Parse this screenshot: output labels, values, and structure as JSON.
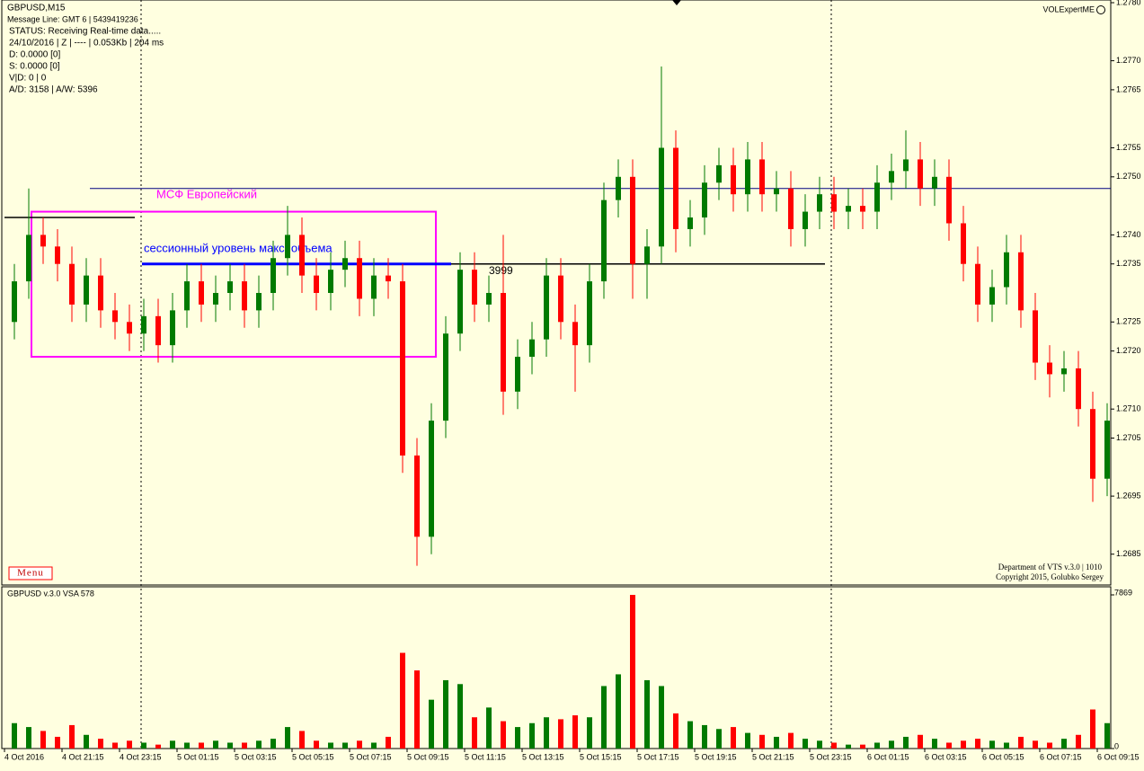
{
  "header": {
    "symbol": "GBPUSD,M15",
    "message": "Message Line: GMT 6 | 5439419236",
    "status": "STATUS:  Receiving Real-time data.....",
    "info": "24/10/2016 | Z | ---- | 0.053Kb | 204 ms",
    "d": "D: 0.0000  [0]",
    "s": "S: 0.0000  [0]",
    "vd": "V|D: 0 | 0",
    "ad": "A/D: 3158 | A/W: 5396",
    "expert": "VOLExpertME",
    "menu": "Menu"
  },
  "footer": {
    "line1": "Department of VTS  v.3.0 | 1010",
    "line2": "Copyright 2015, Golubko Sergey"
  },
  "chart_data": [
    {
      "type": "candlestick",
      "up_color": "#007a00",
      "down_color": "#ff0000",
      "categories": [
        "4 Oct 2016",
        null,
        null,
        null,
        "4 Oct 21:15",
        null,
        null,
        null,
        "4 Oct 23:15",
        null,
        null,
        null,
        "5 Oct 01:15",
        null,
        null,
        null,
        "5 Oct 03:15",
        null,
        null,
        null,
        "5 Oct 05:15",
        null,
        null,
        null,
        "5 Oct 07:15",
        null,
        null,
        null,
        "5 Oct 09:15",
        null,
        null,
        null,
        "5 Oct 11:15",
        null,
        null,
        null,
        "5 Oct 13:15",
        null,
        null,
        null,
        "5 Oct 15:15",
        null,
        null,
        null,
        "5 Oct 17:15",
        null,
        null,
        null,
        "5 Oct 19:15",
        null,
        null,
        null,
        "5 Oct 21:15",
        null,
        null,
        null,
        "5 Oct 23:15",
        null,
        null,
        null,
        "6 Oct 01:15",
        null,
        null,
        null,
        "6 Oct 03:15",
        null,
        null,
        null,
        "6 Oct 05:15",
        null,
        null,
        null,
        "6 Oct 07:15",
        null,
        null,
        null,
        "6 Oct 09:15"
      ],
      "open": [
        1.2725,
        1.2732,
        1.274,
        1.2738,
        1.2735,
        1.2728,
        1.2733,
        1.2727,
        1.2725,
        1.2723,
        1.2726,
        1.2721,
        1.2727,
        1.2732,
        1.2728,
        1.273,
        1.2732,
        1.2727,
        1.273,
        1.2736,
        1.274,
        1.2733,
        1.273,
        1.2734,
        1.2736,
        1.2729,
        1.2733,
        1.2732,
        1.2702,
        1.2688,
        1.2708,
        1.2723,
        1.2734,
        1.2728,
        1.273,
        1.2713,
        1.2719,
        1.2722,
        1.2733,
        1.2725,
        1.2721,
        1.2732,
        1.2746,
        1.275,
        1.2735,
        1.2738,
        1.2755,
        1.2741,
        1.2743,
        1.2749,
        1.2752,
        1.2747,
        1.2753,
        1.2747,
        1.2748,
        1.2741,
        1.2744,
        1.2747,
        1.2744,
        1.2745,
        1.2744,
        1.2749,
        1.2751,
        1.2753,
        1.2748,
        1.275,
        1.2742,
        1.2735,
        1.2728,
        1.2731,
        1.2737,
        1.2727,
        1.2718,
        1.2716,
        1.2717,
        1.271,
        1.2698
      ],
      "high": [
        1.2735,
        1.2748,
        1.2743,
        1.2741,
        1.2738,
        1.2736,
        1.2736,
        1.273,
        1.2728,
        1.2729,
        1.2729,
        1.273,
        1.2735,
        1.2735,
        1.2733,
        1.2735,
        1.2735,
        1.2733,
        1.2739,
        1.2745,
        1.2743,
        1.2736,
        1.2737,
        1.2739,
        1.2739,
        1.2736,
        1.2736,
        1.2735,
        1.2705,
        1.2711,
        1.2726,
        1.2737,
        1.2737,
        1.2733,
        1.274,
        1.2722,
        1.2725,
        1.2736,
        1.2736,
        1.2728,
        1.2735,
        1.2749,
        1.2753,
        1.2753,
        1.2741,
        1.2769,
        1.2758,
        1.2746,
        1.2752,
        1.2755,
        1.2755,
        1.2756,
        1.2756,
        1.2751,
        1.2751,
        1.2747,
        1.275,
        1.275,
        1.2748,
        1.2748,
        1.2752,
        1.2754,
        1.2758,
        1.2756,
        1.2753,
        1.2753,
        1.2745,
        1.2738,
        1.2734,
        1.274,
        1.274,
        1.273,
        1.2721,
        1.272,
        1.272,
        1.2713,
        1.2711
      ],
      "low": [
        1.2722,
        1.2729,
        1.2735,
        1.2732,
        1.2725,
        1.2725,
        1.2724,
        1.2722,
        1.272,
        1.272,
        1.2718,
        1.2718,
        1.2724,
        1.2725,
        1.2725,
        1.2727,
        1.2724,
        1.2724,
        1.2727,
        1.2733,
        1.273,
        1.2727,
        1.2727,
        1.2731,
        1.2726,
        1.2726,
        1.2729,
        1.2699,
        1.2683,
        1.2685,
        1.2705,
        1.272,
        1.2725,
        1.2725,
        1.2709,
        1.271,
        1.2716,
        1.2719,
        1.2722,
        1.2713,
        1.2718,
        1.2729,
        1.2743,
        1.2729,
        1.2729,
        1.2735,
        1.2737,
        1.2738,
        1.274,
        1.2746,
        1.2744,
        1.2744,
        1.2744,
        1.2744,
        1.2738,
        1.2738,
        1.2741,
        1.2741,
        1.2741,
        1.2741,
        1.2741,
        1.2746,
        1.2748,
        1.2745,
        1.2745,
        1.2739,
        1.2732,
        1.2725,
        1.2725,
        1.2728,
        1.2724,
        1.2715,
        1.2712,
        1.2713,
        1.2707,
        1.2694,
        1.2695
      ],
      "close": [
        1.2732,
        1.274,
        1.2738,
        1.2735,
        1.2728,
        1.2733,
        1.2727,
        1.2725,
        1.2723,
        1.2726,
        1.2721,
        1.2727,
        1.2732,
        1.2728,
        1.273,
        1.2732,
        1.2727,
        1.273,
        1.2736,
        1.274,
        1.2733,
        1.273,
        1.2734,
        1.2736,
        1.2729,
        1.2733,
        1.2732,
        1.2702,
        1.2688,
        1.2708,
        1.2723,
        1.2734,
        1.2728,
        1.273,
        1.2713,
        1.2719,
        1.2722,
        1.2733,
        1.2725,
        1.2721,
        1.2732,
        1.2746,
        1.275,
        1.2735,
        1.2738,
        1.2755,
        1.2741,
        1.2743,
        1.2749,
        1.2752,
        1.2747,
        1.2753,
        1.2747,
        1.2748,
        1.2741,
        1.2744,
        1.2747,
        1.2744,
        1.2745,
        1.2744,
        1.2749,
        1.2751,
        1.2753,
        1.2748,
        1.275,
        1.2742,
        1.2735,
        1.2728,
        1.2731,
        1.2737,
        1.2727,
        1.2718,
        1.2716,
        1.2717,
        1.271,
        1.2698,
        1.2708
      ],
      "ylim": [
        1.268,
        1.278
      ],
      "yticks": [
        {
          "value": 1.2685,
          "label": "1.2685"
        },
        {
          "value": 1.2695,
          "label": "1.2695"
        },
        {
          "value": 1.2705,
          "label": "1.2705"
        },
        {
          "value": 1.271,
          "label": "1.2710"
        },
        {
          "value": 1.272,
          "label": "1.2720"
        },
        {
          "value": 1.2725,
          "label": "1.2725"
        },
        {
          "value": 1.2735,
          "label": "1.2735"
        },
        {
          "value": 1.274,
          "label": "1.2740"
        },
        {
          "value": 1.275,
          "label": "1.2750"
        },
        {
          "value": 1.2755,
          "label": "1.2755"
        },
        {
          "value": 1.2765,
          "label": "1.2765"
        },
        {
          "value": 1.277,
          "label": "1.2770"
        },
        {
          "value": 1.278,
          "label": "1.2780"
        }
      ],
      "levels": [
        {
          "value": 1.2748,
          "color": "#000080"
        },
        {
          "value": 1.2743,
          "color": "#000000"
        },
        {
          "value": 1.2735,
          "color": "#0000ff"
        },
        {
          "value": 1.2735,
          "color": "#000000"
        }
      ],
      "box": {
        "top": 1.2744,
        "bottom": 1.2719,
        "color": "#ff00ff"
      },
      "annotations": [
        {
          "text": "МСФ Европейский",
          "color": "#ff00ff"
        },
        {
          "text": "сессионный уровень макс. объема",
          "color": "#0000ff"
        },
        {
          "text": "3999",
          "color": "#000000"
        }
      ]
    },
    {
      "type": "volume",
      "title": "GBPUSD v.3.0 VSA 578",
      "values": [
        1300,
        1100,
        900,
        600,
        1200,
        700,
        500,
        300,
        400,
        300,
        200,
        400,
        300,
        300,
        400,
        300,
        300,
        400,
        500,
        1100,
        900,
        400,
        300,
        300,
        400,
        300,
        600,
        4900,
        4000,
        2500,
        3500,
        3300,
        1600,
        2100,
        1400,
        1100,
        1300,
        1600,
        1500,
        1700,
        1600,
        3200,
        3800,
        7869,
        3500,
        3200,
        1800,
        1400,
        1200,
        1000,
        1100,
        800,
        700,
        600,
        800,
        500,
        400,
        300,
        200,
        200,
        300,
        400,
        600,
        700,
        500,
        300,
        400,
        500,
        400,
        300,
        600,
        400,
        300,
        500,
        700,
        2000,
        1300
      ],
      "ylim": [
        0,
        7869
      ],
      "yticks": [
        0,
        7869
      ]
    }
  ]
}
